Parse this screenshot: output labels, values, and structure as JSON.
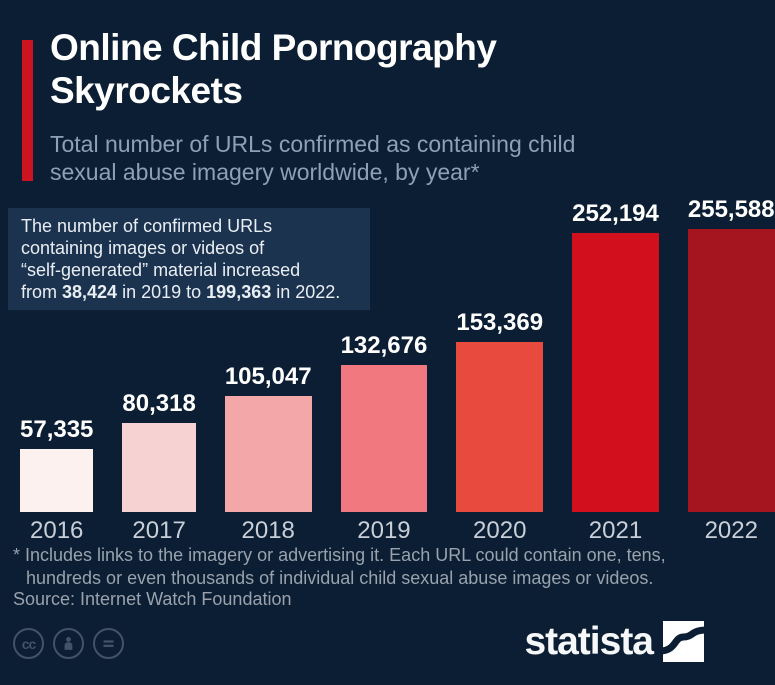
{
  "title": {
    "line1": "Online Child Pornography",
    "line2": "Skyrockets"
  },
  "subtitle": "Total number of URLs confirmed as containing child sexual abuse imagery worldwide, by year*",
  "annotation": {
    "lines": [
      [
        {
          "t": "The number of confirmed URLs"
        }
      ],
      [
        {
          "t": "containing images or videos of"
        }
      ],
      [
        {
          "t": "“self-generated” material increased"
        }
      ],
      [
        {
          "t": "from "
        },
        {
          "t": "38,424",
          "b": true
        },
        {
          "t": " in 2019 to "
        },
        {
          "t": "199,363",
          "b": true
        },
        {
          "t": " in 2022."
        }
      ]
    ]
  },
  "chart_data": {
    "type": "bar",
    "title": "Online Child Pornography Skyrockets",
    "subtitle": "Total number of URLs confirmed as containing child sexual abuse imagery worldwide, by year*",
    "categories": [
      "2016",
      "2017",
      "2018",
      "2019",
      "2020",
      "2021",
      "2022"
    ],
    "values": [
      57335,
      80318,
      105047,
      132676,
      153369,
      252194,
      255588
    ],
    "labels": [
      "57,335",
      "80,318",
      "105,047",
      "132,676",
      "153,369",
      "252,194",
      "255,588"
    ],
    "bar_colors": [
      "#fdf1f0",
      "#f6d3d2",
      "#f3a7a9",
      "#f0787e",
      "#e84b3e",
      "#d20f1d",
      "#a4151f"
    ],
    "xlabel": "",
    "ylabel": "",
    "ylim": [
      0,
      260000
    ],
    "grid": false,
    "legend": false,
    "value_labels_shown": true
  },
  "footnote": "* Includes links to the imagery or advertising it. Each URL could contain one, tens, hundreds or even thousands of individual child sexual abuse images or videos.",
  "source": "Source: Internet Watch Foundation",
  "branding": {
    "logo_text": "statista"
  },
  "license": {
    "icons": [
      "cc",
      "attribution",
      "no-derivatives"
    ]
  },
  "colors": {
    "background": "#0c1e33",
    "accent_red": "#cc1420",
    "annotation_bg": "#1c3350",
    "title_text": "#ffffff",
    "subtitle_text": "#8da0b5",
    "footnote_text": "#99a2ad"
  }
}
